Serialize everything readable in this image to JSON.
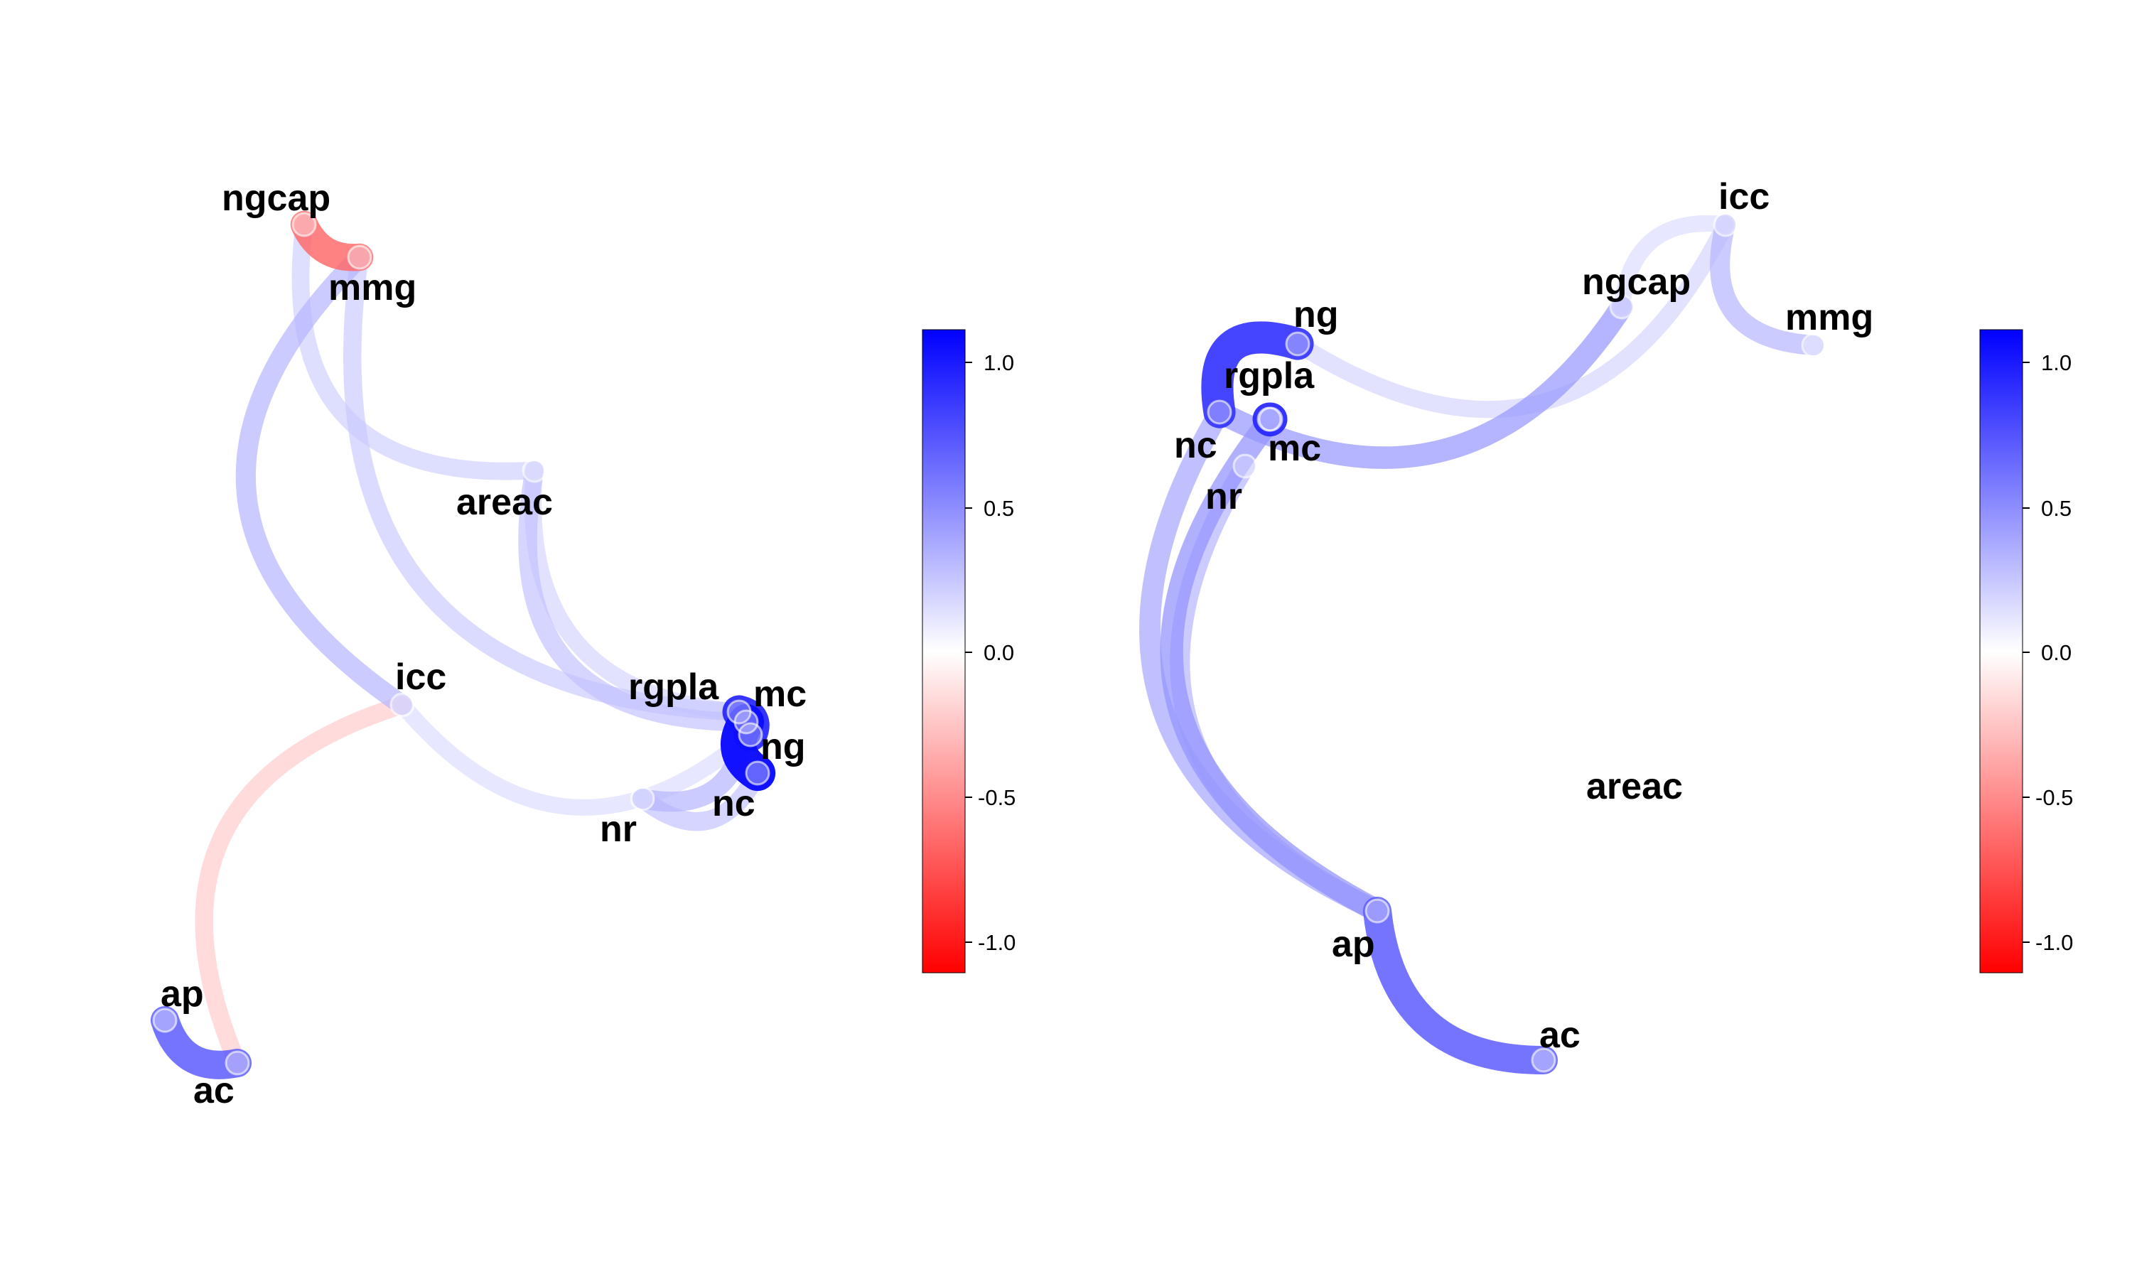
{
  "legend_ticks": [
    "1.0",
    "0.5",
    "0.0",
    "-0.5",
    "-1.0"
  ],
  "color_scale": {
    "min": -1.1,
    "max": 1.1,
    "negative": "#ff0000",
    "zero": "#ffffff",
    "positive": "#0000ff"
  },
  "panels": [
    {
      "labels": {
        "ngcap": "ngcap",
        "mmg": "mmg",
        "areac": "areac",
        "icc": "icc",
        "rgpla": "rgpla",
        "mc": "mc",
        "ng": "ng",
        "nc": "nc",
        "nr": "nr",
        "ap": "ap",
        "ac": "ac"
      },
      "edges": [
        {
          "from": "ngcap",
          "to": "mmg",
          "value": -0.6
        },
        {
          "from": "icc",
          "to": "ac",
          "value": -0.22
        },
        {
          "from": "ap",
          "to": "ac",
          "value": 0.65
        },
        {
          "from": "mc",
          "to": "nc",
          "value": 0.95
        },
        {
          "from": "ng",
          "to": "rgpla",
          "value": 0.85
        },
        {
          "from": "ngcap",
          "to": "areac",
          "value": 0.2
        },
        {
          "from": "areac",
          "to": "mc",
          "value": 0.25
        },
        {
          "from": "areac",
          "to": "rgpla",
          "value": 0.18
        },
        {
          "from": "mmg",
          "to": "icc",
          "value": 0.3
        },
        {
          "from": "mmg",
          "to": "rgpla",
          "value": 0.22
        },
        {
          "from": "icc",
          "to": "ng",
          "value": 0.15
        },
        {
          "from": "nr",
          "to": "mc",
          "value": 0.3
        },
        {
          "from": "nr",
          "to": "nc",
          "value": 0.25
        }
      ]
    },
    {
      "labels": {
        "icc": "icc",
        "ngcap": "ngcap",
        "mmg": "mmg",
        "ng": "ng",
        "rgpla": "rgpla",
        "nc": "nc",
        "mc": "mc",
        "nr": "nr",
        "areac": "areac",
        "ap": "ap",
        "ac": "ac"
      },
      "edges": [
        {
          "from": "icc",
          "to": "mmg",
          "value": 0.3
        },
        {
          "from": "ng",
          "to": "icc",
          "value": 0.18
        },
        {
          "from": "nc",
          "to": "ngcap",
          "value": 0.4
        },
        {
          "from": "icc",
          "to": "ngcap",
          "value": 0.15
        },
        {
          "from": "ng",
          "to": "nc",
          "value": 0.8
        },
        {
          "from": "rgpla",
          "to": "mc",
          "value": 0.85
        },
        {
          "from": "nc",
          "to": "ap",
          "value": 0.35
        },
        {
          "from": "nr",
          "to": "ap",
          "value": 0.3
        },
        {
          "from": "mc",
          "to": "ap",
          "value": 0.42
        },
        {
          "from": "ap",
          "to": "ac",
          "value": 0.65
        }
      ]
    }
  ]
}
